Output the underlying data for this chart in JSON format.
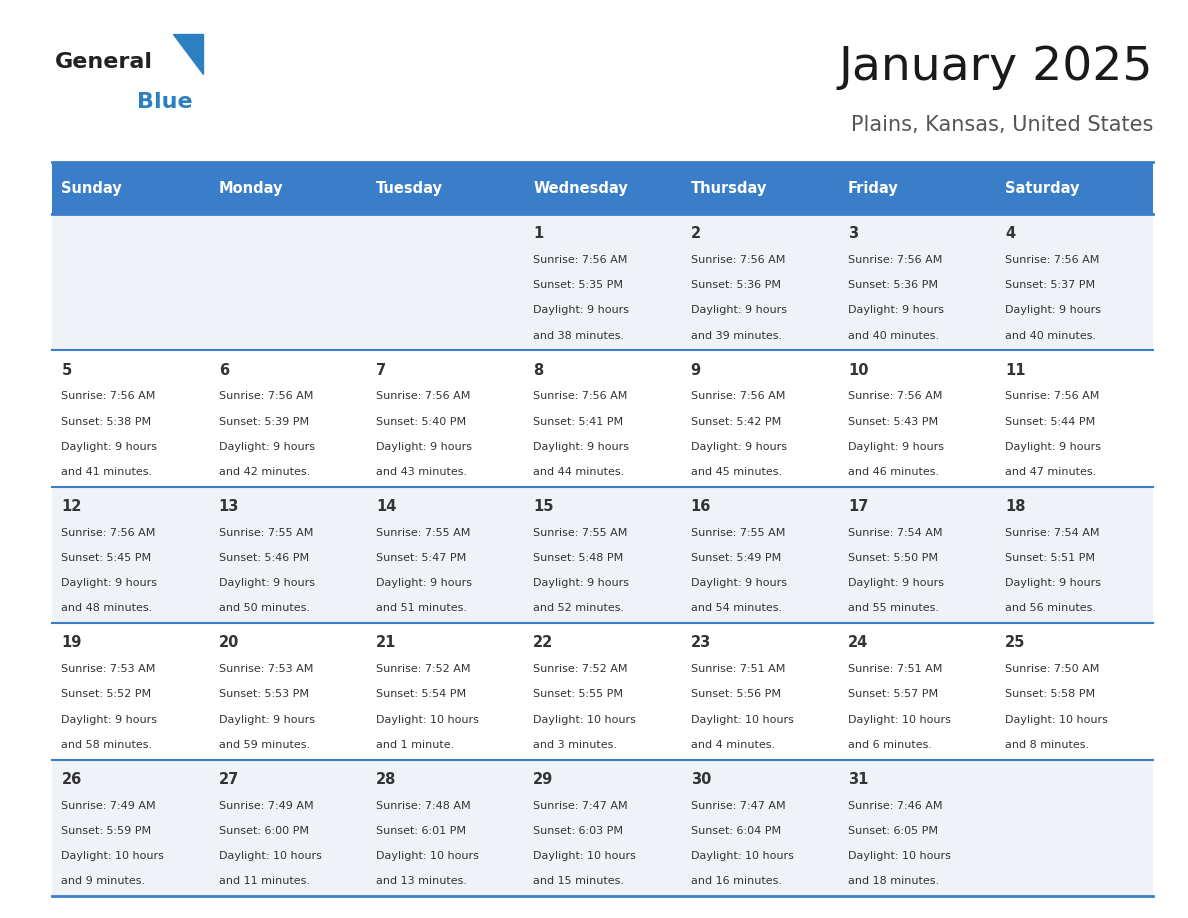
{
  "title": "January 2025",
  "subtitle": "Plains, Kansas, United States",
  "days_of_week": [
    "Sunday",
    "Monday",
    "Tuesday",
    "Wednesday",
    "Thursday",
    "Friday",
    "Saturday"
  ],
  "header_bg": "#3a7dc9",
  "header_text": "#ffffff",
  "row_bg_odd": "#eff3f8",
  "row_bg_even": "#ffffff",
  "separator_color": "#3a7dc9",
  "day_num_color": "#333333",
  "cell_text_color": "#333333",
  "logo_general_color": "#222222",
  "logo_blue_color": "#2e7fc1",
  "calendar_data": [
    [
      null,
      null,
      null,
      {
        "day": 1,
        "sunrise": "7:56 AM",
        "sunset": "5:35 PM",
        "daylight": "9 hours",
        "daylight2": "and 38 minutes."
      },
      {
        "day": 2,
        "sunrise": "7:56 AM",
        "sunset": "5:36 PM",
        "daylight": "9 hours",
        "daylight2": "and 39 minutes."
      },
      {
        "day": 3,
        "sunrise": "7:56 AM",
        "sunset": "5:36 PM",
        "daylight": "9 hours",
        "daylight2": "and 40 minutes."
      },
      {
        "day": 4,
        "sunrise": "7:56 AM",
        "sunset": "5:37 PM",
        "daylight": "9 hours",
        "daylight2": "and 40 minutes."
      }
    ],
    [
      {
        "day": 5,
        "sunrise": "7:56 AM",
        "sunset": "5:38 PM",
        "daylight": "9 hours",
        "daylight2": "and 41 minutes."
      },
      {
        "day": 6,
        "sunrise": "7:56 AM",
        "sunset": "5:39 PM",
        "daylight": "9 hours",
        "daylight2": "and 42 minutes."
      },
      {
        "day": 7,
        "sunrise": "7:56 AM",
        "sunset": "5:40 PM",
        "daylight": "9 hours",
        "daylight2": "and 43 minutes."
      },
      {
        "day": 8,
        "sunrise": "7:56 AM",
        "sunset": "5:41 PM",
        "daylight": "9 hours",
        "daylight2": "and 44 minutes."
      },
      {
        "day": 9,
        "sunrise": "7:56 AM",
        "sunset": "5:42 PM",
        "daylight": "9 hours",
        "daylight2": "and 45 minutes."
      },
      {
        "day": 10,
        "sunrise": "7:56 AM",
        "sunset": "5:43 PM",
        "daylight": "9 hours",
        "daylight2": "and 46 minutes."
      },
      {
        "day": 11,
        "sunrise": "7:56 AM",
        "sunset": "5:44 PM",
        "daylight": "9 hours",
        "daylight2": "and 47 minutes."
      }
    ],
    [
      {
        "day": 12,
        "sunrise": "7:56 AM",
        "sunset": "5:45 PM",
        "daylight": "9 hours",
        "daylight2": "and 48 minutes."
      },
      {
        "day": 13,
        "sunrise": "7:55 AM",
        "sunset": "5:46 PM",
        "daylight": "9 hours",
        "daylight2": "and 50 minutes."
      },
      {
        "day": 14,
        "sunrise": "7:55 AM",
        "sunset": "5:47 PM",
        "daylight": "9 hours",
        "daylight2": "and 51 minutes."
      },
      {
        "day": 15,
        "sunrise": "7:55 AM",
        "sunset": "5:48 PM",
        "daylight": "9 hours",
        "daylight2": "and 52 minutes."
      },
      {
        "day": 16,
        "sunrise": "7:55 AM",
        "sunset": "5:49 PM",
        "daylight": "9 hours",
        "daylight2": "and 54 minutes."
      },
      {
        "day": 17,
        "sunrise": "7:54 AM",
        "sunset": "5:50 PM",
        "daylight": "9 hours",
        "daylight2": "and 55 minutes."
      },
      {
        "day": 18,
        "sunrise": "7:54 AM",
        "sunset": "5:51 PM",
        "daylight": "9 hours",
        "daylight2": "and 56 minutes."
      }
    ],
    [
      {
        "day": 19,
        "sunrise": "7:53 AM",
        "sunset": "5:52 PM",
        "daylight": "9 hours",
        "daylight2": "and 58 minutes."
      },
      {
        "day": 20,
        "sunrise": "7:53 AM",
        "sunset": "5:53 PM",
        "daylight": "9 hours",
        "daylight2": "and 59 minutes."
      },
      {
        "day": 21,
        "sunrise": "7:52 AM",
        "sunset": "5:54 PM",
        "daylight": "10 hours",
        "daylight2": "and 1 minute."
      },
      {
        "day": 22,
        "sunrise": "7:52 AM",
        "sunset": "5:55 PM",
        "daylight": "10 hours",
        "daylight2": "and 3 minutes."
      },
      {
        "day": 23,
        "sunrise": "7:51 AM",
        "sunset": "5:56 PM",
        "daylight": "10 hours",
        "daylight2": "and 4 minutes."
      },
      {
        "day": 24,
        "sunrise": "7:51 AM",
        "sunset": "5:57 PM",
        "daylight": "10 hours",
        "daylight2": "and 6 minutes."
      },
      {
        "day": 25,
        "sunrise": "7:50 AM",
        "sunset": "5:58 PM",
        "daylight": "10 hours",
        "daylight2": "and 8 minutes."
      }
    ],
    [
      {
        "day": 26,
        "sunrise": "7:49 AM",
        "sunset": "5:59 PM",
        "daylight": "10 hours",
        "daylight2": "and 9 minutes."
      },
      {
        "day": 27,
        "sunrise": "7:49 AM",
        "sunset": "6:00 PM",
        "daylight": "10 hours",
        "daylight2": "and 11 minutes."
      },
      {
        "day": 28,
        "sunrise": "7:48 AM",
        "sunset": "6:01 PM",
        "daylight": "10 hours",
        "daylight2": "and 13 minutes."
      },
      {
        "day": 29,
        "sunrise": "7:47 AM",
        "sunset": "6:03 PM",
        "daylight": "10 hours",
        "daylight2": "and 15 minutes."
      },
      {
        "day": 30,
        "sunrise": "7:47 AM",
        "sunset": "6:04 PM",
        "daylight": "10 hours",
        "daylight2": "and 16 minutes."
      },
      {
        "day": 31,
        "sunrise": "7:46 AM",
        "sunset": "6:05 PM",
        "daylight": "10 hours",
        "daylight2": "and 18 minutes."
      },
      null
    ]
  ]
}
